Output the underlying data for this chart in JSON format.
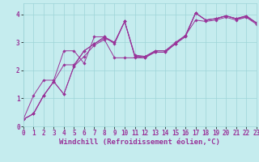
{
  "background_color": "#c5ecee",
  "grid_color": "#9dd4d8",
  "line_color": "#993399",
  "marker_color": "#993399",
  "xlabel": "Windchill (Refroidissement éolien,°C)",
  "xlim": [
    0,
    23
  ],
  "ylim": [
    0,
    4.4
  ],
  "yticks": [
    0,
    1,
    2,
    3,
    4
  ],
  "xticks": [
    0,
    1,
    2,
    3,
    4,
    5,
    6,
    7,
    8,
    9,
    10,
    11,
    12,
    13,
    14,
    15,
    16,
    17,
    18,
    19,
    20,
    21,
    22,
    23
  ],
  "series": [
    {
      "x": [
        0,
        1,
        2,
        3,
        4,
        5,
        6,
        7,
        8,
        9,
        10,
        11,
        12,
        13,
        14,
        15,
        16,
        17,
        18,
        19,
        20,
        21,
        22,
        23
      ],
      "y": [
        0.25,
        1.1,
        1.65,
        1.65,
        2.7,
        2.7,
        2.25,
        3.2,
        3.2,
        2.95,
        3.75,
        2.5,
        2.5,
        2.7,
        2.7,
        3.0,
        3.25,
        4.05,
        3.8,
        3.85,
        3.95,
        3.85,
        3.9,
        3.7
      ]
    },
    {
      "x": [
        0,
        1,
        2,
        3,
        4,
        5,
        6,
        7,
        8,
        9,
        10,
        11,
        12,
        13,
        14,
        15,
        16,
        17,
        18,
        19,
        20,
        21,
        22,
        23
      ],
      "y": [
        0.25,
        0.45,
        1.1,
        1.6,
        2.2,
        2.2,
        2.7,
        2.95,
        3.2,
        3.0,
        3.75,
        2.5,
        2.45,
        2.7,
        2.7,
        2.95,
        3.2,
        4.05,
        3.8,
        3.85,
        3.95,
        3.85,
        3.95,
        3.7
      ]
    },
    {
      "x": [
        0,
        1,
        2,
        3,
        4,
        5,
        6,
        7,
        8,
        9,
        10,
        11,
        12,
        13,
        14,
        15,
        16,
        17,
        18,
        19,
        20,
        21,
        22,
        23
      ],
      "y": [
        0.25,
        0.45,
        1.1,
        1.6,
        1.15,
        2.15,
        2.7,
        2.95,
        3.15,
        3.0,
        3.75,
        2.55,
        2.5,
        2.65,
        2.65,
        2.95,
        3.25,
        4.05,
        3.8,
        3.85,
        3.95,
        3.85,
        3.95,
        3.7
      ]
    },
    {
      "x": [
        0,
        1,
        2,
        3,
        4,
        5,
        6,
        7,
        8,
        9,
        10,
        11,
        12,
        13,
        14,
        15,
        16,
        17,
        18,
        19,
        20,
        21,
        22,
        23
      ],
      "y": [
        0.25,
        0.45,
        1.1,
        1.6,
        1.15,
        2.15,
        2.5,
        2.9,
        3.1,
        2.45,
        2.45,
        2.45,
        2.45,
        2.65,
        2.65,
        2.95,
        3.25,
        3.8,
        3.75,
        3.8,
        3.9,
        3.8,
        3.9,
        3.65
      ]
    }
  ],
  "xlabel_fontsize": 6.5,
  "tick_fontsize": 5.5
}
